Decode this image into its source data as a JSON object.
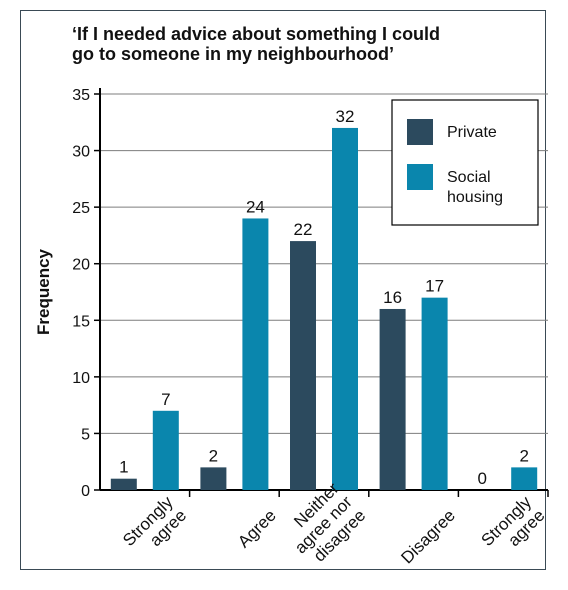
{
  "chart_data": {
    "type": "bar",
    "title_lines": [
      "‘If I needed advice about something I could",
      "go to someone in my neighbourhood’"
    ],
    "ylabel": "Frequency",
    "xlabel": "",
    "ylim": [
      0,
      35
    ],
    "yticks": [
      0,
      5,
      10,
      15,
      20,
      25,
      30,
      35
    ],
    "grid": true,
    "legend_position": "top-right",
    "categories": [
      [
        "Strongly",
        "agree"
      ],
      [
        "Agree"
      ],
      [
        "Neither",
        "agree nor",
        "disagree"
      ],
      [
        "Disagree"
      ],
      [
        "Strongly",
        "agree"
      ]
    ],
    "series": [
      {
        "name": "Private",
        "legend_lines": [
          "Private"
        ],
        "color": "#2c4a5e",
        "values": [
          1,
          2,
          22,
          16,
          0
        ]
      },
      {
        "name": "Social housing",
        "legend_lines": [
          "Social",
          "housing"
        ],
        "color": "#0a86ad",
        "values": [
          7,
          24,
          32,
          17,
          2
        ]
      }
    ]
  }
}
